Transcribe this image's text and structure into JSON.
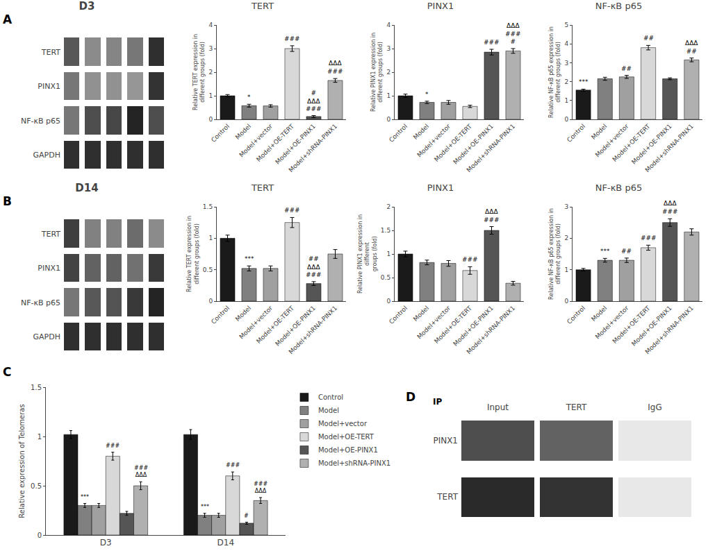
{
  "chart_data": [
    {
      "type": "heatmap",
      "title": "D3",
      "annotations": [
        "A"
      ],
      "categories": [
        null,
        null,
        null,
        null,
        null
      ],
      "rows": [
        "TERT",
        "PINX1",
        "NF-κB p65",
        "GAPDH"
      ],
      "cells": [
        [
          0.7,
          0.45,
          0.48,
          0.55,
          0.9
        ],
        [
          0.55,
          0.42,
          0.42,
          0.4,
          0.88
        ],
        [
          0.55,
          0.75,
          0.78,
          0.95,
          0.75
        ],
        [
          0.9,
          0.9,
          0.9,
          0.9,
          0.9
        ]
      ],
      "color_range": [
        0,
        1
      ],
      "tick_labels": "y"
    },
    {
      "type": "bar",
      "title": "TERT",
      "ylabel": "Relative TERT expression in\ndifferent groups (fold)",
      "categories": [
        "Control",
        "Model",
        "Model+vector",
        "Model+OE-TERT",
        "Model+OE-PINX1",
        "Model+shRNA-PINX1"
      ],
      "values": [
        1.0,
        0.58,
        0.57,
        3.0,
        0.12,
        1.65
      ],
      "errors": [
        0.05,
        0.06,
        0.05,
        0.12,
        0.04,
        0.08
      ],
      "annotations": [
        null,
        "*",
        null,
        "###",
        "#\nΔΔΔ\n###",
        "ΔΔΔ\n###"
      ],
      "colors": [
        "#1a1a1a",
        "#808080",
        "#a0a0a0",
        "#d8d8d8",
        "#555555",
        "#b0b0b0"
      ],
      "ylim": [
        0,
        4
      ],
      "yticks": [
        0,
        1,
        2,
        3,
        4
      ],
      "grid": false
    },
    {
      "type": "bar",
      "title": "PINX1",
      "ylabel": "Relative PINX1 expression in\ndifferent groups (fold)",
      "categories": [
        "Control",
        "Model",
        "Model+vector",
        "Model+OE-TERT",
        "Model+OE-PINX1",
        "Model+shRNA-PINX1"
      ],
      "values": [
        1.0,
        0.72,
        0.72,
        0.55,
        2.85,
        2.9
      ],
      "errors": [
        0.07,
        0.05,
        0.08,
        0.05,
        0.12,
        0.1
      ],
      "annotations": [
        null,
        "*",
        null,
        null,
        "###",
        "ΔΔΔ\n###\n#"
      ],
      "colors": [
        "#1a1a1a",
        "#808080",
        "#a0a0a0",
        "#d8d8d8",
        "#555555",
        "#b0b0b0"
      ],
      "ylim": [
        0,
        4
      ],
      "yticks": [
        0,
        1,
        2,
        3,
        4
      ],
      "grid": false
    },
    {
      "type": "bar",
      "title": "NF-κB p65",
      "ylabel": "Relative NF-κB p65 expression in\ndifferent groups (fold)",
      "categories": [
        "Control",
        "Model",
        "Model+vector",
        "Model+OE-TERT",
        "Model+OE-PINX1",
        "Model+shRNA-PINX1"
      ],
      "values": [
        1.55,
        2.15,
        2.25,
        3.8,
        2.15,
        3.15
      ],
      "errors": [
        0.05,
        0.08,
        0.08,
        0.12,
        0.05,
        0.1
      ],
      "annotations": [
        "***",
        null,
        "##",
        "##",
        null,
        "ΔΔΔ\n##"
      ],
      "colors": [
        "#1a1a1a",
        "#808080",
        "#a0a0a0",
        "#d8d8d8",
        "#555555",
        "#b0b0b0"
      ],
      "ylim": [
        0,
        5
      ],
      "yticks": [
        0,
        1,
        2,
        3,
        4,
        5
      ],
      "grid": false
    },
    {
      "type": "heatmap",
      "title": "D14",
      "annotations": [
        "B"
      ],
      "categories": [
        null,
        null,
        null,
        null,
        null
      ],
      "rows": [
        "TERT",
        "PINX1",
        "NF-κB p65",
        "GAPDH"
      ],
      "cells": [
        [
          0.82,
          0.5,
          0.5,
          0.6,
          0.45
        ],
        [
          0.8,
          0.65,
          0.65,
          0.58,
          0.85
        ],
        [
          0.55,
          0.7,
          0.72,
          0.85,
          0.95
        ],
        [
          0.9,
          0.9,
          0.9,
          0.9,
          0.9
        ]
      ],
      "color_range": [
        0,
        1
      ],
      "tick_labels": "y"
    },
    {
      "type": "bar",
      "title": "TERT",
      "ylabel": "Relative TERT expression in\ndifferent groups (fold)",
      "categories": [
        "Control",
        "Model",
        "Model+vector",
        "Model+OE-TERT",
        "Model+OE-PINX1",
        "Model+shRNA-PINX1"
      ],
      "values": [
        1.0,
        0.52,
        0.52,
        1.25,
        0.28,
        0.75
      ],
      "errors": [
        0.05,
        0.04,
        0.04,
        0.08,
        0.03,
        0.07
      ],
      "annotations": [
        null,
        "***",
        null,
        "###",
        "##\nΔΔΔ\n###",
        null
      ],
      "colors": [
        "#1a1a1a",
        "#808080",
        "#a0a0a0",
        "#d8d8d8",
        "#555555",
        "#b0b0b0"
      ],
      "ylim": [
        0,
        1.5
      ],
      "yticks": [
        0,
        0.5,
        1,
        1.5
      ],
      "grid": false
    },
    {
      "type": "bar",
      "title": "PINX1",
      "ylabel": "Relative PINX1 expression in\ndifferent\ngroups (fold)",
      "categories": [
        "Control",
        "Model",
        "Model+vector",
        "Model+OE-TERT",
        "Model+OE-PINX1",
        "Model+shRNA-PINX1"
      ],
      "values": [
        1.0,
        0.82,
        0.8,
        0.65,
        1.5,
        0.38
      ],
      "errors": [
        0.06,
        0.05,
        0.06,
        0.08,
        0.08,
        0.04
      ],
      "annotations": [
        null,
        null,
        null,
        "###",
        "ΔΔΔ\n###",
        null
      ],
      "colors": [
        "#1a1a1a",
        "#808080",
        "#a0a0a0",
        "#d8d8d8",
        "#555555",
        "#b0b0b0"
      ],
      "ylim": [
        0,
        2
      ],
      "yticks": [
        0,
        0.5,
        1,
        1.5,
        2
      ],
      "grid": false
    },
    {
      "type": "bar",
      "title": "NF-κB p65",
      "ylabel": "Relative NF-κB p65 expression in\ndifferent groups (fold)",
      "categories": [
        "Control",
        "Model",
        "Model+vector",
        "Model+OE-TERT",
        "Model+OE-PINX1",
        "Model+shRNA-PINX1"
      ],
      "values": [
        1.0,
        1.3,
        1.3,
        1.7,
        2.5,
        2.2
      ],
      "errors": [
        0.04,
        0.06,
        0.07,
        0.08,
        0.12,
        0.1
      ],
      "annotations": [
        null,
        "***",
        "##",
        "###",
        "ΔΔΔ\n###",
        null
      ],
      "colors": [
        "#1a1a1a",
        "#808080",
        "#a0a0a0",
        "#d8d8d8",
        "#555555",
        "#b0b0b0"
      ],
      "ylim": [
        0,
        3
      ],
      "yticks": [
        0,
        1,
        2,
        3
      ],
      "grid": false
    },
    {
      "type": "bar",
      "annotations": [
        "C"
      ],
      "ylabel": "Relative expression of Telomeras",
      "categories": [
        "D3",
        "D14"
      ],
      "series": [
        {
          "name": "Control",
          "color": "#1a1a1a",
          "values": [
            1.02,
            1.02
          ],
          "errors": [
            0.04,
            0.05
          ],
          "annotations": [
            null,
            null
          ]
        },
        {
          "name": "Model",
          "color": "#808080",
          "values": [
            0.3,
            0.2
          ],
          "errors": [
            0.02,
            0.02
          ],
          "annotations": [
            "***",
            "***"
          ]
        },
        {
          "name": "Model+vector",
          "color": "#a0a0a0",
          "values": [
            0.3,
            0.2
          ],
          "errors": [
            0.02,
            0.02
          ],
          "annotations": [
            null,
            null
          ]
        },
        {
          "name": "Model+OE-TERT",
          "color": "#d8d8d8",
          "values": [
            0.8,
            0.6
          ],
          "errors": [
            0.04,
            0.04
          ],
          "annotations": [
            "###",
            "###"
          ]
        },
        {
          "name": "Model+OE-PINX1",
          "color": "#555555",
          "values": [
            0.22,
            0.12
          ],
          "errors": [
            0.02,
            0.01
          ],
          "annotations": [
            null,
            "#"
          ]
        },
        {
          "name": "Model+shRNA-PINX1",
          "color": "#b0b0b0",
          "values": [
            0.5,
            0.35
          ],
          "errors": [
            0.04,
            0.03
          ],
          "annotations": [
            "###\nΔΔΔ",
            "###\nΔΔΔ"
          ]
        }
      ],
      "ylim": [
        0,
        1.5
      ],
      "yticks": [
        0,
        0.5,
        1,
        1.5
      ],
      "grid": false,
      "legend": "upper right"
    },
    {
      "type": "heatmap",
      "annotations": [
        "D"
      ],
      "ylabel": "IP",
      "categories": [
        "Input",
        "TERT",
        "IgG"
      ],
      "rows": [
        "PINX1",
        "TERT"
      ],
      "cells": [
        [
          0.75,
          0.65,
          0.0
        ],
        [
          0.92,
          0.88,
          0.0
        ]
      ],
      "color_range": [
        0,
        1
      ]
    }
  ]
}
